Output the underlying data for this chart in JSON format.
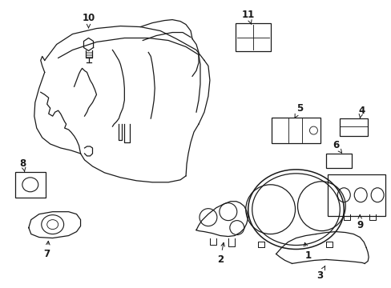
{
  "background_color": "#ffffff",
  "line_color": "#1a1a1a",
  "fig_width": 4.89,
  "fig_height": 3.6,
  "dpi": 100,
  "label_fontsize": 8.5
}
